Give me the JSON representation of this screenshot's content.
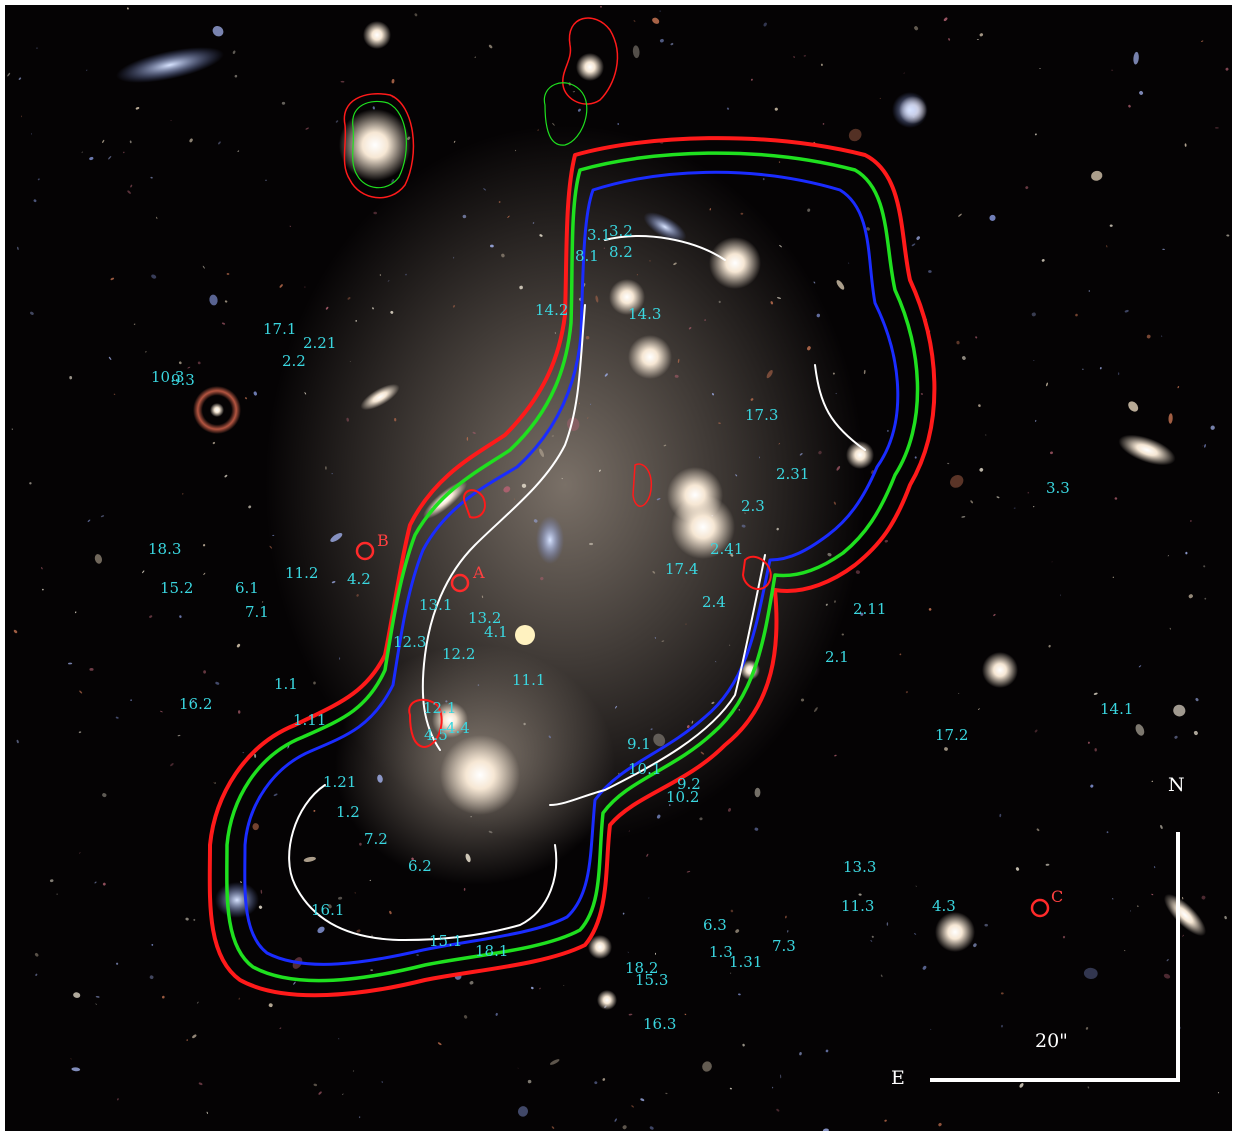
{
  "image_labels": [
    {
      "text": "3.1"
    },
    {
      "text": "3.2"
    },
    {
      "text": "8.1"
    },
    {
      "text": "8.2"
    },
    {
      "text": "14.2"
    },
    {
      "text": "14.3"
    },
    {
      "text": "17.1"
    },
    {
      "text": "2.21"
    },
    {
      "text": "2.2"
    },
    {
      "text": "10.3"
    },
    {
      "text": "9.3"
    },
    {
      "text": "17.3"
    },
    {
      "text": "2.31"
    },
    {
      "text": "2.3"
    },
    {
      "text": "3.3"
    },
    {
      "text": "18.3"
    },
    {
      "text": "15.2"
    },
    {
      "text": "6.1"
    },
    {
      "text": "7.1"
    },
    {
      "text": "11.2"
    },
    {
      "text": "4.2"
    },
    {
      "text": "13.1"
    },
    {
      "text": "13.2"
    },
    {
      "text": "4.1"
    },
    {
      "text": "12.3"
    },
    {
      "text": "12.2"
    },
    {
      "text": "11.1"
    },
    {
      "text": "2.41"
    },
    {
      "text": "17.4"
    },
    {
      "text": "2.4"
    },
    {
      "text": "2.11"
    },
    {
      "text": "2.1"
    },
    {
      "text": "1.1"
    },
    {
      "text": "16.2"
    },
    {
      "text": "1.11"
    },
    {
      "text": "12.1"
    },
    {
      "text": "4.5"
    },
    {
      "text": "4.4"
    },
    {
      "text": "9.1"
    },
    {
      "text": "10.1"
    },
    {
      "text": "9.2"
    },
    {
      "text": "10.2"
    },
    {
      "text": "17.2"
    },
    {
      "text": "14.1"
    },
    {
      "text": "1.21"
    },
    {
      "text": "1.2"
    },
    {
      "text": "7.2"
    },
    {
      "text": "6.2"
    },
    {
      "text": "13.3"
    },
    {
      "text": "11.3"
    },
    {
      "text": "4.3"
    },
    {
      "text": "16.1"
    },
    {
      "text": "15.1"
    },
    {
      "text": "18.1"
    },
    {
      "text": "6.3"
    },
    {
      "text": "1.3"
    },
    {
      "text": "1.31"
    },
    {
      "text": "7.3"
    },
    {
      "text": "18.2"
    },
    {
      "text": "15.3"
    },
    {
      "text": "16.3"
    }
  ],
  "markers": [
    {
      "text": "A"
    },
    {
      "text": "B"
    },
    {
      "text": "C"
    }
  ],
  "compass": {
    "north": "N",
    "east": "E",
    "scale": "20\""
  },
  "colors": {
    "label": "#3ad6df",
    "marker": "#ff2a2a",
    "curve_red": "#ff1a1a",
    "curve_green": "#1fe01f",
    "curve_blue": "#1a2cff",
    "curve_white": "#ffffff"
  }
}
